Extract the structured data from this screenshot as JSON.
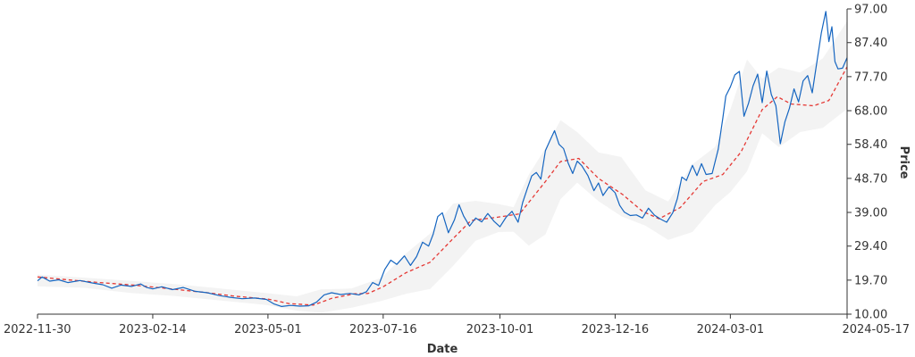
{
  "chart_data": {
    "type": "line",
    "xlabel": "Date",
    "ylabel": "Price",
    "x_range": [
      "2022-11-30",
      "2024-05-17"
    ],
    "ylim": [
      10.0,
      97.0
    ],
    "y_axis_side": "right",
    "grid": false,
    "legend": "none",
    "x_ticks": [
      "2022-11-30",
      "2023-02-14",
      "2023-05-01",
      "2023-07-16",
      "2023-10-01",
      "2023-12-16",
      "2024-03-01",
      "2024-05-17"
    ],
    "y_ticks": [
      "10.00",
      "19.70",
      "29.40",
      "39.00",
      "48.70",
      "58.40",
      "68.00",
      "77.70",
      "87.40",
      "97.00"
    ],
    "colors": {
      "price": "#1565c0",
      "moving_average": "#e53935",
      "band": "#e9e9e9"
    },
    "series": [
      {
        "style": "solid",
        "points": [
          [
            "2022-11-30",
            19.5
          ],
          [
            "2022-12-03",
            20.6
          ],
          [
            "2022-12-08",
            19.4
          ],
          [
            "2022-12-14",
            19.8
          ],
          [
            "2022-12-20",
            19.0
          ],
          [
            "2022-12-28",
            19.6
          ],
          [
            "2023-01-05",
            18.9
          ],
          [
            "2023-01-12",
            18.4
          ],
          [
            "2023-01-18",
            17.4
          ],
          [
            "2023-01-24",
            18.3
          ],
          [
            "2023-01-31",
            17.9
          ],
          [
            "2023-02-06",
            18.6
          ],
          [
            "2023-02-10",
            17.6
          ],
          [
            "2023-02-14",
            17.2
          ],
          [
            "2023-02-20",
            17.8
          ],
          [
            "2023-02-27",
            17.0
          ],
          [
            "2023-03-06",
            17.6
          ],
          [
            "2023-03-14",
            16.5
          ],
          [
            "2023-03-22",
            16.1
          ],
          [
            "2023-03-30",
            15.3
          ],
          [
            "2023-04-06",
            14.8
          ],
          [
            "2023-04-14",
            14.4
          ],
          [
            "2023-04-22",
            14.6
          ],
          [
            "2023-04-30",
            14.2
          ],
          [
            "2023-05-05",
            12.9
          ],
          [
            "2023-05-10",
            12.2
          ],
          [
            "2023-05-16",
            12.5
          ],
          [
            "2023-05-22",
            12.3
          ],
          [
            "2023-05-28",
            12.4
          ],
          [
            "2023-06-02",
            13.4
          ],
          [
            "2023-06-07",
            15.5
          ],
          [
            "2023-06-12",
            16.1
          ],
          [
            "2023-06-18",
            15.6
          ],
          [
            "2023-06-24",
            15.9
          ],
          [
            "2023-06-30",
            15.5
          ],
          [
            "2023-07-05",
            16.4
          ],
          [
            "2023-07-09",
            19.0
          ],
          [
            "2023-07-13",
            18.2
          ],
          [
            "2023-07-17",
            22.7
          ],
          [
            "2023-07-21",
            25.4
          ],
          [
            "2023-07-25",
            24.2
          ],
          [
            "2023-07-30",
            26.6
          ],
          [
            "2023-08-03",
            23.9
          ],
          [
            "2023-08-07",
            26.4
          ],
          [
            "2023-08-11",
            30.5
          ],
          [
            "2023-08-15",
            29.4
          ],
          [
            "2023-08-18",
            32.8
          ],
          [
            "2023-08-21",
            37.8
          ],
          [
            "2023-08-24",
            38.9
          ],
          [
            "2023-08-28",
            33.2
          ],
          [
            "2023-09-01",
            36.9
          ],
          [
            "2023-09-04",
            41.2
          ],
          [
            "2023-09-07",
            38.0
          ],
          [
            "2023-09-11",
            35.1
          ],
          [
            "2023-09-15",
            37.4
          ],
          [
            "2023-09-19",
            36.3
          ],
          [
            "2023-09-23",
            38.7
          ],
          [
            "2023-09-27",
            36.5
          ],
          [
            "2023-10-01",
            34.9
          ],
          [
            "2023-10-05",
            37.6
          ],
          [
            "2023-10-09",
            39.3
          ],
          [
            "2023-10-13",
            36.2
          ],
          [
            "2023-10-16",
            41.8
          ],
          [
            "2023-10-19",
            45.7
          ],
          [
            "2023-10-22",
            49.4
          ],
          [
            "2023-10-25",
            50.4
          ],
          [
            "2023-10-28",
            48.5
          ],
          [
            "2023-10-31",
            56.6
          ],
          [
            "2023-11-03",
            59.5
          ],
          [
            "2023-11-06",
            62.3
          ],
          [
            "2023-11-09",
            58.4
          ],
          [
            "2023-11-12",
            57.2
          ],
          [
            "2023-11-15",
            53.1
          ],
          [
            "2023-11-18",
            50.1
          ],
          [
            "2023-11-21",
            53.6
          ],
          [
            "2023-11-24",
            52.3
          ],
          [
            "2023-11-28",
            49.5
          ],
          [
            "2023-12-02",
            45.2
          ],
          [
            "2023-12-05",
            47.4
          ],
          [
            "2023-12-08",
            43.8
          ],
          [
            "2023-12-12",
            46.3
          ],
          [
            "2023-12-16",
            44.6
          ],
          [
            "2023-12-19",
            41.0
          ],
          [
            "2023-12-22",
            39.1
          ],
          [
            "2023-12-26",
            38.1
          ],
          [
            "2023-12-30",
            38.3
          ],
          [
            "2024-01-03",
            37.4
          ],
          [
            "2024-01-07",
            40.2
          ],
          [
            "2024-01-11",
            38.2
          ],
          [
            "2024-01-15",
            37.1
          ],
          [
            "2024-01-19",
            36.2
          ],
          [
            "2024-01-23",
            38.9
          ],
          [
            "2024-01-26",
            42.9
          ],
          [
            "2024-01-29",
            49.1
          ],
          [
            "2024-02-01",
            48.1
          ],
          [
            "2024-02-05",
            52.4
          ],
          [
            "2024-02-08",
            49.5
          ],
          [
            "2024-02-11",
            52.9
          ],
          [
            "2024-02-14",
            49.8
          ],
          [
            "2024-02-18",
            50.1
          ],
          [
            "2024-02-22",
            57.0
          ],
          [
            "2024-02-25",
            65.8
          ],
          [
            "2024-02-27",
            72.2
          ],
          [
            "2024-03-01",
            74.8
          ],
          [
            "2024-03-04",
            78.2
          ],
          [
            "2024-03-07",
            79.2
          ],
          [
            "2024-03-10",
            66.4
          ],
          [
            "2024-03-13",
            70.1
          ],
          [
            "2024-03-16",
            75.1
          ],
          [
            "2024-03-19",
            78.4
          ],
          [
            "2024-03-22",
            70.3
          ],
          [
            "2024-03-25",
            79.3
          ],
          [
            "2024-03-28",
            72.6
          ],
          [
            "2024-03-31",
            69.4
          ],
          [
            "2024-04-03",
            58.6
          ],
          [
            "2024-04-06",
            64.8
          ],
          [
            "2024-04-09",
            68.7
          ],
          [
            "2024-04-12",
            74.2
          ],
          [
            "2024-04-15",
            70.5
          ],
          [
            "2024-04-18",
            76.5
          ],
          [
            "2024-04-21",
            78.0
          ],
          [
            "2024-04-24",
            73.1
          ],
          [
            "2024-04-27",
            81.7
          ],
          [
            "2024-04-30",
            90.2
          ],
          [
            "2024-05-03",
            96.3
          ],
          [
            "2024-05-05",
            87.7
          ],
          [
            "2024-05-07",
            91.9
          ],
          [
            "2024-05-09",
            82.0
          ],
          [
            "2024-05-11",
            79.9
          ],
          [
            "2024-05-14",
            80.1
          ],
          [
            "2024-05-17",
            83.1
          ]
        ]
      },
      {
        "style": "dashed",
        "points": [
          [
            "2022-11-30",
            20.6
          ],
          [
            "2022-12-20",
            19.8
          ],
          [
            "2023-01-10",
            19.0
          ],
          [
            "2023-02-01",
            18.3
          ],
          [
            "2023-02-24",
            17.3
          ],
          [
            "2023-03-20",
            16.2
          ],
          [
            "2023-04-10",
            15.1
          ],
          [
            "2023-05-01",
            14.3
          ],
          [
            "2023-05-15",
            13.0
          ],
          [
            "2023-05-31",
            12.6
          ],
          [
            "2023-06-12",
            14.5
          ],
          [
            "2023-06-27",
            15.8
          ],
          [
            "2023-07-06",
            15.9
          ],
          [
            "2023-07-16",
            17.8
          ],
          [
            "2023-07-31",
            21.8
          ],
          [
            "2023-08-16",
            24.8
          ],
          [
            "2023-08-31",
            31.5
          ],
          [
            "2023-09-12",
            36.7
          ],
          [
            "2023-09-29",
            37.6
          ],
          [
            "2023-10-14",
            38.6
          ],
          [
            "2023-10-31",
            47.8
          ],
          [
            "2023-11-10",
            53.5
          ],
          [
            "2023-11-22",
            54.4
          ],
          [
            "2023-12-05",
            48.7
          ],
          [
            "2023-12-21",
            44.1
          ],
          [
            "2024-01-03",
            39.3
          ],
          [
            "2024-01-14",
            37.2
          ],
          [
            "2024-01-28",
            40.4
          ],
          [
            "2024-02-12",
            47.8
          ],
          [
            "2024-02-25",
            49.8
          ],
          [
            "2024-03-08",
            56.2
          ],
          [
            "2024-03-22",
            68.3
          ],
          [
            "2024-04-01",
            72.0
          ],
          [
            "2024-04-10",
            69.9
          ],
          [
            "2024-04-25",
            69.4
          ],
          [
            "2024-05-05",
            70.9
          ],
          [
            "2024-05-17",
            80.5
          ]
        ]
      }
    ],
    "band": [
      [
        "2022-11-30",
        17.9,
        21.3
      ],
      [
        "2022-12-31",
        17.5,
        20.4
      ],
      [
        "2023-01-31",
        16.0,
        19.5
      ],
      [
        "2023-02-28",
        15.2,
        18.6
      ],
      [
        "2023-03-31",
        13.9,
        17.3
      ],
      [
        "2023-04-30",
        12.6,
        16.0
      ],
      [
        "2023-05-20",
        11.0,
        15.1
      ],
      [
        "2023-06-05",
        10.4,
        17.1
      ],
      [
        "2023-06-25",
        11.8,
        17.3
      ],
      [
        "2023-07-15",
        13.8,
        20.4
      ],
      [
        "2023-07-31",
        15.8,
        27.3
      ],
      [
        "2023-08-16",
        17.2,
        33.0
      ],
      [
        "2023-08-31",
        23.7,
        41.5
      ],
      [
        "2023-09-15",
        30.9,
        42.3
      ],
      [
        "2023-09-30",
        33.4,
        41.4
      ],
      [
        "2023-10-10",
        33.5,
        40.5
      ],
      [
        "2023-10-20",
        29.5,
        49.7
      ],
      [
        "2023-10-31",
        32.7,
        57.3
      ],
      [
        "2023-11-10",
        42.8,
        65.3
      ],
      [
        "2023-11-21",
        47.5,
        61.9
      ],
      [
        "2023-12-05",
        42.2,
        56.1
      ],
      [
        "2023-12-20",
        37.9,
        54.8
      ],
      [
        "2024-01-05",
        35.2,
        45.3
      ],
      [
        "2024-01-20",
        31.2,
        42.1
      ],
      [
        "2024-02-05",
        33.4,
        52.7
      ],
      [
        "2024-02-20",
        41.1,
        57.7
      ],
      [
        "2024-03-01",
        44.8,
        68.4
      ],
      [
        "2024-03-12",
        50.7,
        82.6
      ],
      [
        "2024-03-22",
        61.6,
        77.1
      ],
      [
        "2024-04-02",
        57.6,
        80.3
      ],
      [
        "2024-04-16",
        61.9,
        78.9
      ],
      [
        "2024-05-01",
        63.1,
        82.9
      ],
      [
        "2024-05-17",
        68.5,
        93.5
      ]
    ]
  }
}
